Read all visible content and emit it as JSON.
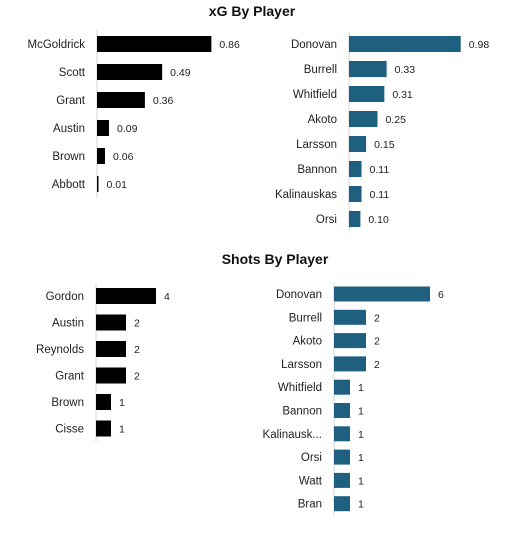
{
  "chart_data": [
    {
      "type": "bar",
      "orientation": "horizontal",
      "title": "xG By Player",
      "panels": [
        {
          "color": "#000000",
          "xlim": [
            0,
            1.0
          ],
          "categories": [
            "McGoldrick",
            "Scott",
            "Grant",
            "Austin",
            "Brown",
            "Abbott"
          ],
          "values": [
            0.86,
            0.49,
            0.36,
            0.09,
            0.06,
            0.01
          ],
          "labels": [
            "0.86",
            "0.49",
            "0.36",
            "0.09",
            "0.06",
            "0.01"
          ]
        },
        {
          "color": "#1f5f80",
          "xlim": [
            0,
            1.0
          ],
          "categories": [
            "Donovan",
            "Burrell",
            "Whitfield",
            "Akoto",
            "Larsson",
            "Bannon",
            "Kalinauskas",
            "Orsi"
          ],
          "values": [
            0.98,
            0.33,
            0.31,
            0.25,
            0.15,
            0.11,
            0.11,
            0.1
          ],
          "labels": [
            "0.98",
            "0.33",
            "0.31",
            "0.25",
            "0.15",
            "0.11",
            "0.11",
            "0.10"
          ]
        }
      ]
    },
    {
      "type": "bar",
      "orientation": "horizontal",
      "title": "Shots By Player",
      "panels": [
        {
          "color": "#000000",
          "xlim": [
            0,
            6
          ],
          "categories": [
            "Gordon",
            "Austin",
            "Reynolds",
            "Grant",
            "Brown",
            "Cisse"
          ],
          "values": [
            4,
            2,
            2,
            2,
            1,
            1
          ],
          "labels": [
            "4",
            "2",
            "2",
            "2",
            "1",
            "1"
          ]
        },
        {
          "color": "#1f5f80",
          "xlim": [
            0,
            6
          ],
          "categories": [
            "Donovan",
            "Burrell",
            "Akoto",
            "Larsson",
            "Whitfield",
            "Bannon",
            "Kalinausk...",
            "Orsi",
            "Watt",
            "Bran"
          ],
          "values": [
            6,
            2,
            2,
            2,
            1,
            1,
            1,
            1,
            1,
            1
          ],
          "labels": [
            "6",
            "2",
            "2",
            "2",
            "1",
            "1",
            "1",
            "1",
            "1",
            "1"
          ]
        }
      ]
    }
  ]
}
